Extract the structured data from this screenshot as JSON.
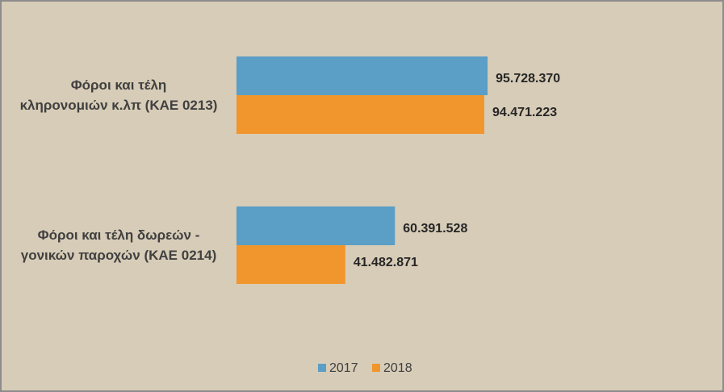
{
  "chart_data": {
    "type": "hbar",
    "categories": [
      "Φόροι και τέλη\nκληρονομιών κ.λπ (ΚΑΕ 0213)",
      "Φόροι και τέλη δωρεών -\nγονικών παροχών  (ΚΑΕ 0214)"
    ],
    "series": [
      {
        "name": "2017",
        "color": "#5b9ec6",
        "values": [
          95728370,
          60391528
        ],
        "value_labels": [
          "95.728.370",
          "60.391.528"
        ]
      },
      {
        "name": "2018",
        "color": "#f0962d",
        "values": [
          94471223,
          41482871
        ],
        "value_labels": [
          "94.471.223",
          "41.482.871"
        ]
      }
    ],
    "xlim": [
      0,
      120000000
    ]
  }
}
